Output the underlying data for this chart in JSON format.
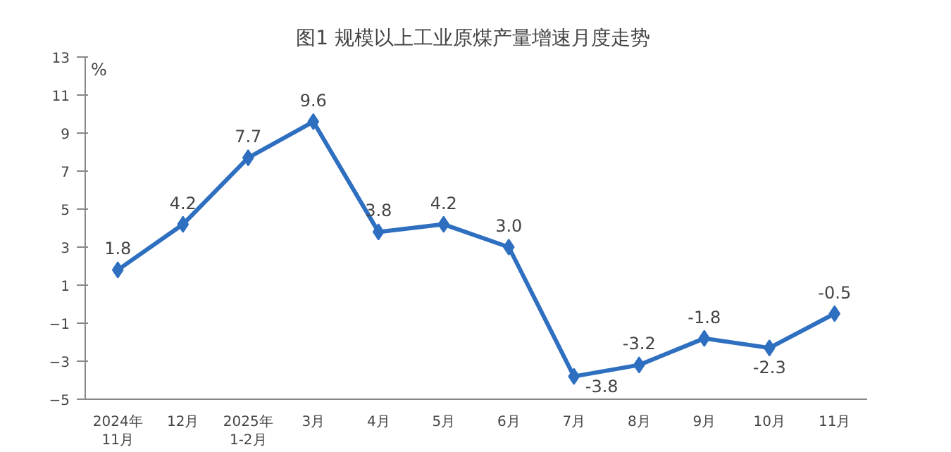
{
  "chart_data": {
    "type": "line",
    "title": "图1  规模以上工业原煤产量增速月度走势",
    "ylabel": "%",
    "categories": [
      "2024年\n11月",
      "12月",
      "2025年\n1-2月",
      "3月",
      "4月",
      "5月",
      "6月",
      "7月",
      "8月",
      "9月",
      "10月",
      "11月"
    ],
    "series": [
      {
        "color": "#2e6fc0",
        "values": [
          1.8,
          4.2,
          7.7,
          9.6,
          3.8,
          4.2,
          3.0,
          -3.8,
          -3.2,
          -1.8,
          -2.3,
          -0.5
        ]
      }
    ],
    "ylim": [
      -5,
      13
    ],
    "yticks": [
      -5,
      -3,
      -1,
      1,
      3,
      5,
      7,
      9,
      11,
      13
    ],
    "value_labels": [
      "1.8",
      "4.2",
      "7.7",
      "9.6",
      "3.8",
      "4.2",
      "3.0",
      "-3.8",
      "-3.2",
      "-1.8",
      "-2.3",
      "-0.5"
    ],
    "grid": false,
    "marker": "diamond",
    "line_style": "solid"
  }
}
